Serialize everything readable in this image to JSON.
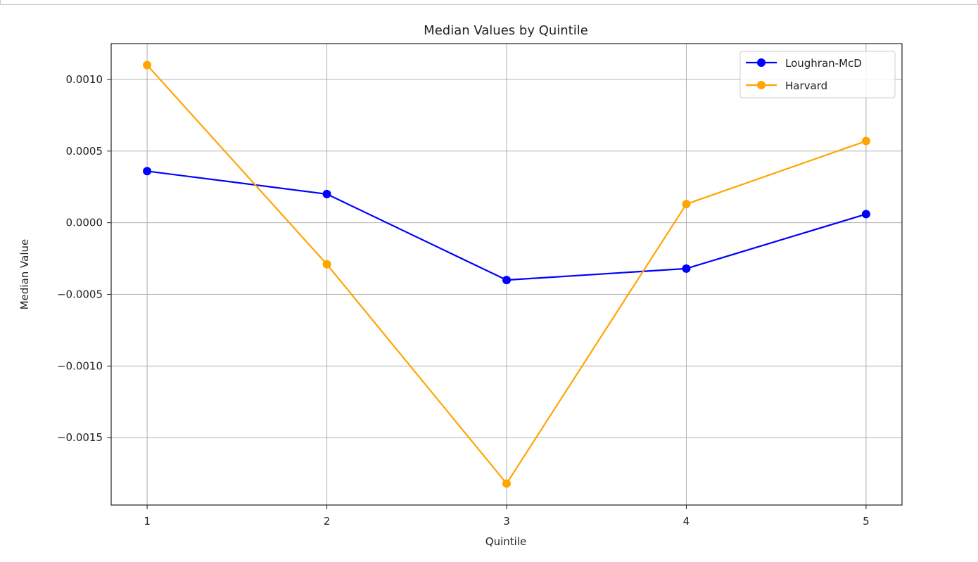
{
  "chart_data": {
    "type": "line",
    "title": "Median Values by Quintile",
    "xlabel": "Quintile",
    "ylabel": "Median Value",
    "x": [
      1,
      2,
      3,
      4,
      5
    ],
    "xticks": [
      "1",
      "2",
      "3",
      "4",
      "5"
    ],
    "xlim": [
      0.8,
      5.2
    ],
    "ylim": [
      -0.00197,
      0.00125
    ],
    "yticks": [
      0.001,
      0.0005,
      0.0,
      -0.0005,
      -0.001,
      -0.0015
    ],
    "ytick_labels": [
      "0.0010",
      "0.0005",
      "0.0000",
      "−0.0005",
      "−0.0010",
      "−0.0015"
    ],
    "grid": true,
    "legend_position": "top-right",
    "series": [
      {
        "name": "Loughran-McD",
        "color": "#0000ff",
        "marker": "circle",
        "values": [
          0.00036,
          0.0002,
          -0.0004,
          -0.00032,
          6e-05
        ]
      },
      {
        "name": "Harvard",
        "color": "#ffa500",
        "marker": "circle",
        "values": [
          0.0011,
          -0.00029,
          -0.00182,
          0.00013,
          0.00057
        ]
      }
    ]
  }
}
